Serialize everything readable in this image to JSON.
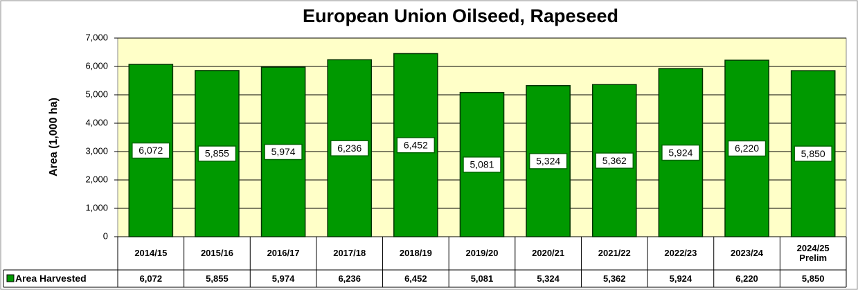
{
  "chart_data": {
    "type": "bar",
    "title": "European Union Oilseed, Rapeseed",
    "y_label": "Area  (1,000  ha)",
    "categories": [
      "2014/15",
      "2015/16",
      "2016/17",
      "2017/18",
      "2018/19",
      "2019/20",
      "2020/21",
      "2021/22",
      "2022/23",
      "2023/24",
      "2024/25\nPrelim"
    ],
    "series": [
      {
        "name": "Area Harvested",
        "color": "#009900",
        "values": [
          6072,
          5855,
          5974,
          6236,
          6452,
          5081,
          5324,
          5362,
          5924,
          6220,
          5850
        ],
        "value_labels": [
          "6,072",
          "5,855",
          "5,974",
          "6,236",
          "6,452",
          "5,081",
          "5,324",
          "5,362",
          "5,924",
          "6,220",
          "5,850"
        ]
      }
    ],
    "ylim": [
      0,
      7000
    ],
    "yticks": [
      0,
      {
        "value": 1000,
        "label": "1,000"
      },
      {
        "value": 2000,
        "label": "2,000"
      },
      {
        "value": 3000,
        "label": "3,000"
      },
      {
        "value": 4000,
        "label": "4,000"
      },
      {
        "value": 5000,
        "label": "5,000"
      },
      {
        "value": 6000,
        "label": "6,000"
      },
      {
        "value": 7000,
        "label": "7,000"
      }
    ],
    "grid": true,
    "plot_background": "#ffffc8"
  }
}
